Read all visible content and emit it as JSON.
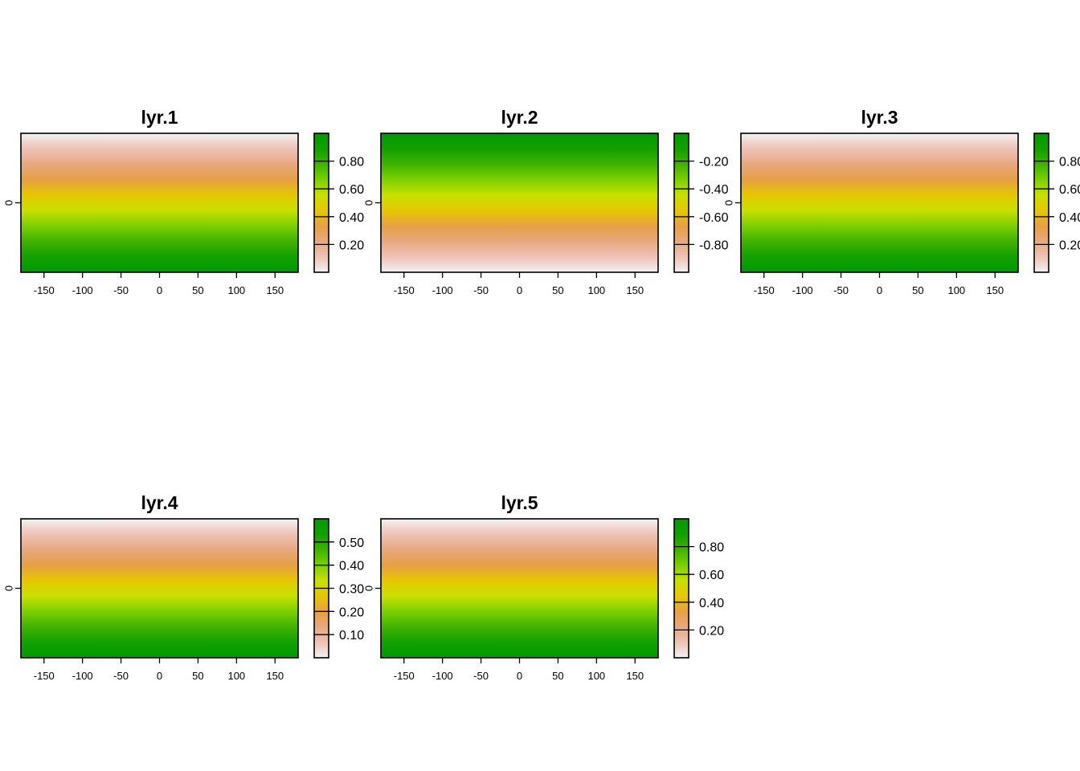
{
  "colors": {
    "ramp": [
      "#F2F2F2",
      "#EEC2B6",
      "#E8A87F",
      "#E6A045",
      "#E6C700",
      "#C8E000",
      "#7CD000",
      "#3FB300",
      "#13A000",
      "#009A00"
    ]
  },
  "chart_data": [
    {
      "type": "heatmap",
      "title": "lyr.1",
      "x_ticks": [
        "-150",
        "-100",
        "-50",
        "0",
        "50",
        "100",
        "150"
      ],
      "x_tick_values": [
        -150,
        -100,
        -50,
        0,
        50,
        100,
        150
      ],
      "xlim": [
        -180,
        180
      ],
      "y_ticks": [
        "0"
      ],
      "y_tick_values": [
        0
      ],
      "ylim": [
        -90,
        90
      ],
      "gradient": "low-at-top",
      "value_range": [
        0,
        1
      ],
      "legend_ticks": [
        "0.80",
        "0.60",
        "0.40",
        "0.20"
      ],
      "legend_tick_values": [
        0.8,
        0.6,
        0.4,
        0.2
      ],
      "legend_range": [
        0.0,
        1.0
      ]
    },
    {
      "type": "heatmap",
      "title": "lyr.2",
      "x_ticks": [
        "-150",
        "-100",
        "-50",
        "0",
        "50",
        "100",
        "150"
      ],
      "x_tick_values": [
        -150,
        -100,
        -50,
        0,
        50,
        100,
        150
      ],
      "xlim": [
        -180,
        180
      ],
      "y_ticks": [
        "0"
      ],
      "y_tick_values": [
        0
      ],
      "ylim": [
        -90,
        90
      ],
      "gradient": "low-at-bottom",
      "value_range": [
        -1,
        0
      ],
      "legend_ticks": [
        "-0.20",
        "-0.40",
        "-0.60",
        "-0.80"
      ],
      "legend_tick_values": [
        -0.2,
        -0.4,
        -0.6,
        -0.8
      ],
      "legend_range": [
        -1.0,
        0.0
      ]
    },
    {
      "type": "heatmap",
      "title": "lyr.3",
      "x_ticks": [
        "-150",
        "-100",
        "-50",
        "0",
        "50",
        "100",
        "150"
      ],
      "x_tick_values": [
        -150,
        -100,
        -50,
        0,
        50,
        100,
        150
      ],
      "xlim": [
        -180,
        180
      ],
      "y_ticks": [
        "0"
      ],
      "y_tick_values": [
        0
      ],
      "ylim": [
        -90,
        90
      ],
      "gradient": "low-at-top",
      "value_range": [
        0,
        1
      ],
      "legend_ticks": [
        "0.80",
        "0.60",
        "0.40",
        "0.20"
      ],
      "legend_tick_values": [
        0.8,
        0.6,
        0.4,
        0.2
      ],
      "legend_range": [
        0.0,
        1.0
      ]
    },
    {
      "type": "heatmap",
      "title": "lyr.4",
      "x_ticks": [
        "-150",
        "-100",
        "-50",
        "0",
        "50",
        "100",
        "150"
      ],
      "x_tick_values": [
        -150,
        -100,
        -50,
        0,
        50,
        100,
        150
      ],
      "xlim": [
        -180,
        180
      ],
      "y_ticks": [
        "0"
      ],
      "y_tick_values": [
        0
      ],
      "ylim": [
        -90,
        90
      ],
      "gradient": "low-at-top",
      "value_range": [
        0,
        0.6
      ],
      "legend_ticks": [
        "0.50",
        "0.40",
        "0.30",
        "0.20",
        "0.10"
      ],
      "legend_tick_values": [
        0.5,
        0.4,
        0.3,
        0.2,
        0.1
      ],
      "legend_range": [
        0.0,
        0.6
      ]
    },
    {
      "type": "heatmap",
      "title": "lyr.5",
      "x_ticks": [
        "-150",
        "-100",
        "-50",
        "0",
        "50",
        "100",
        "150"
      ],
      "x_tick_values": [
        -150,
        -100,
        -50,
        0,
        50,
        100,
        150
      ],
      "xlim": [
        -180,
        180
      ],
      "y_ticks": [
        "0"
      ],
      "y_tick_values": [
        0
      ],
      "ylim": [
        -90,
        90
      ],
      "gradient": "low-at-top",
      "value_range": [
        0,
        1
      ],
      "legend_ticks": [
        "0.80",
        "0.60",
        "0.40",
        "0.20"
      ],
      "legend_tick_values": [
        0.8,
        0.6,
        0.4,
        0.2
      ],
      "legend_range": [
        0.0,
        1.0
      ]
    }
  ]
}
